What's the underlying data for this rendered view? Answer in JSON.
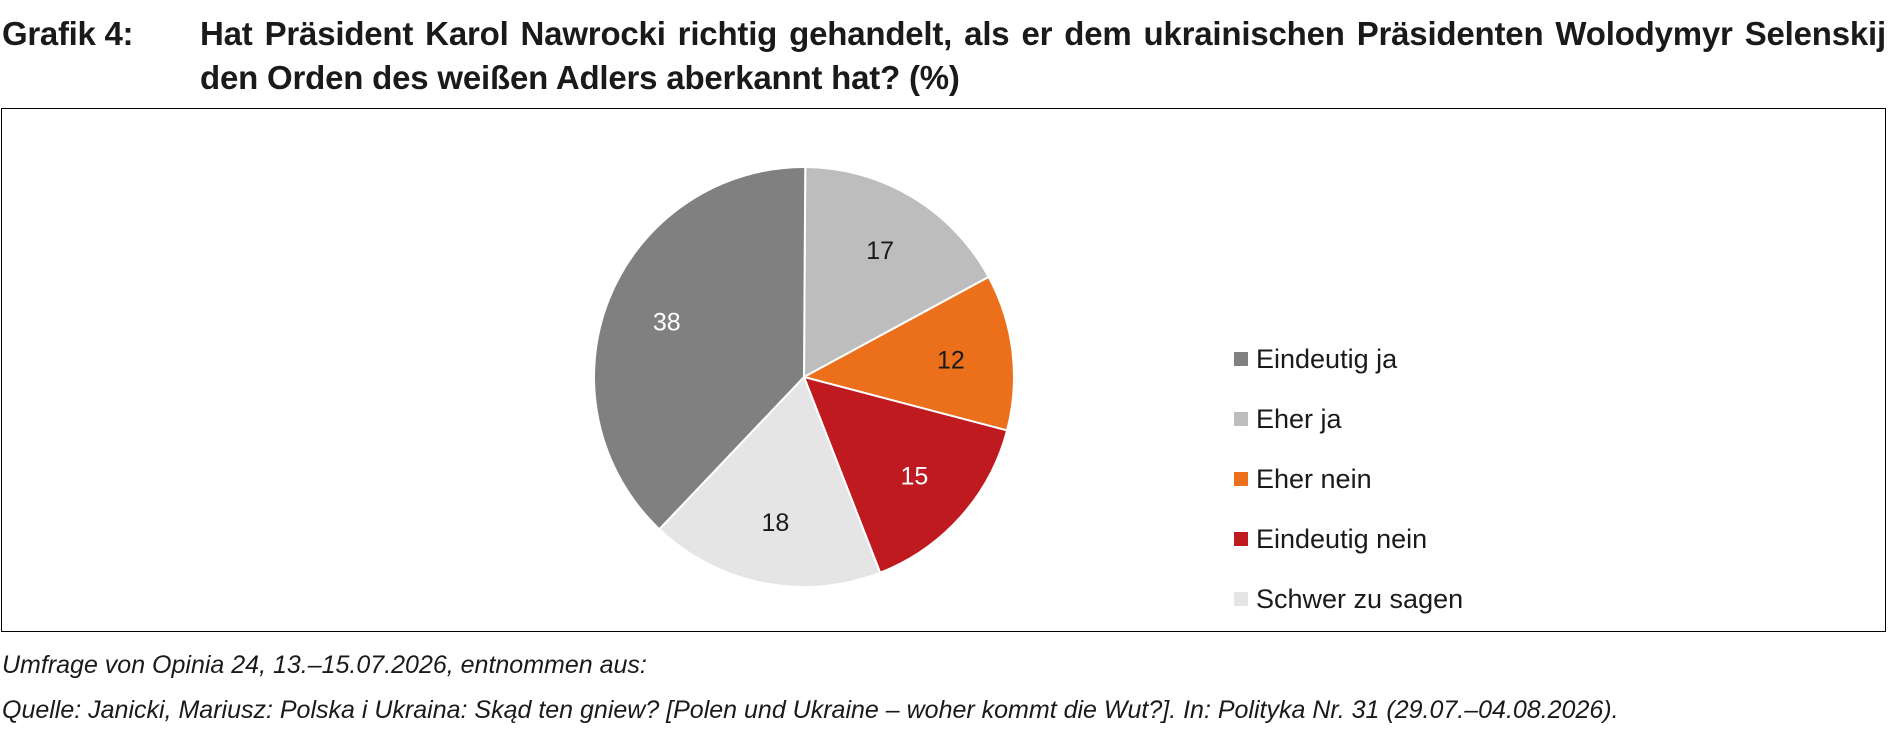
{
  "figure": {
    "label": "Grafik 4:",
    "title": "Hat Präsident Karol Nawrocki richtig gehandelt, als er dem ukrainischen Präsidenten Wolodymyr Selenskij den Orden des weißen Adlers aberkannt hat? (%)"
  },
  "chart_data": {
    "type": "pie",
    "title": "Hat Präsident Karol Nawrocki richtig gehandelt, als er dem ukrainischen Präsidenten Wolodymyr Selenskij den Orden des weißen Adlers aberkannt hat? (%)",
    "unit": "%",
    "legend_position": "right",
    "start": "12 o'clock, clockwise from 'Eher ja'",
    "slices": [
      {
        "label": "Eher ja",
        "value": 17,
        "color": "#bdbdbd",
        "label_color": "#1a1a1a"
      },
      {
        "label": "Eher nein",
        "value": 12,
        "color": "#ec6f1c",
        "label_color": "#1a1a1a"
      },
      {
        "label": "Eindeutig nein",
        "value": 15,
        "color": "#be1a20",
        "label_color": "#ffffff"
      },
      {
        "label": "Schwer zu sagen",
        "value": 18,
        "color": "#e5e5e5",
        "label_color": "#1a1a1a"
      },
      {
        "label": "Eindeutig ja",
        "value": 38,
        "color": "#808080",
        "label_color": "#ffffff"
      }
    ],
    "legend": [
      {
        "label": "Eindeutig ja",
        "color": "#808080"
      },
      {
        "label": "Eher ja",
        "color": "#bdbdbd"
      },
      {
        "label": "Eher nein",
        "color": "#ec6f1c"
      },
      {
        "label": "Eindeutig nein",
        "color": "#be1a20"
      },
      {
        "label": "Schwer zu sagen",
        "color": "#e5e5e5"
      }
    ]
  },
  "notes": {
    "survey": "Umfrage von Opinia 24, 13.–15.07.2026, entnommen aus:",
    "source": "Quelle: Janicki, Mariusz: Polska i Ukraina: Skąd ten gniew? [Polen und Ukraine – woher kommt die Wut?]. In: Polityka Nr. 31 (29.07.–04.08.2026)."
  }
}
